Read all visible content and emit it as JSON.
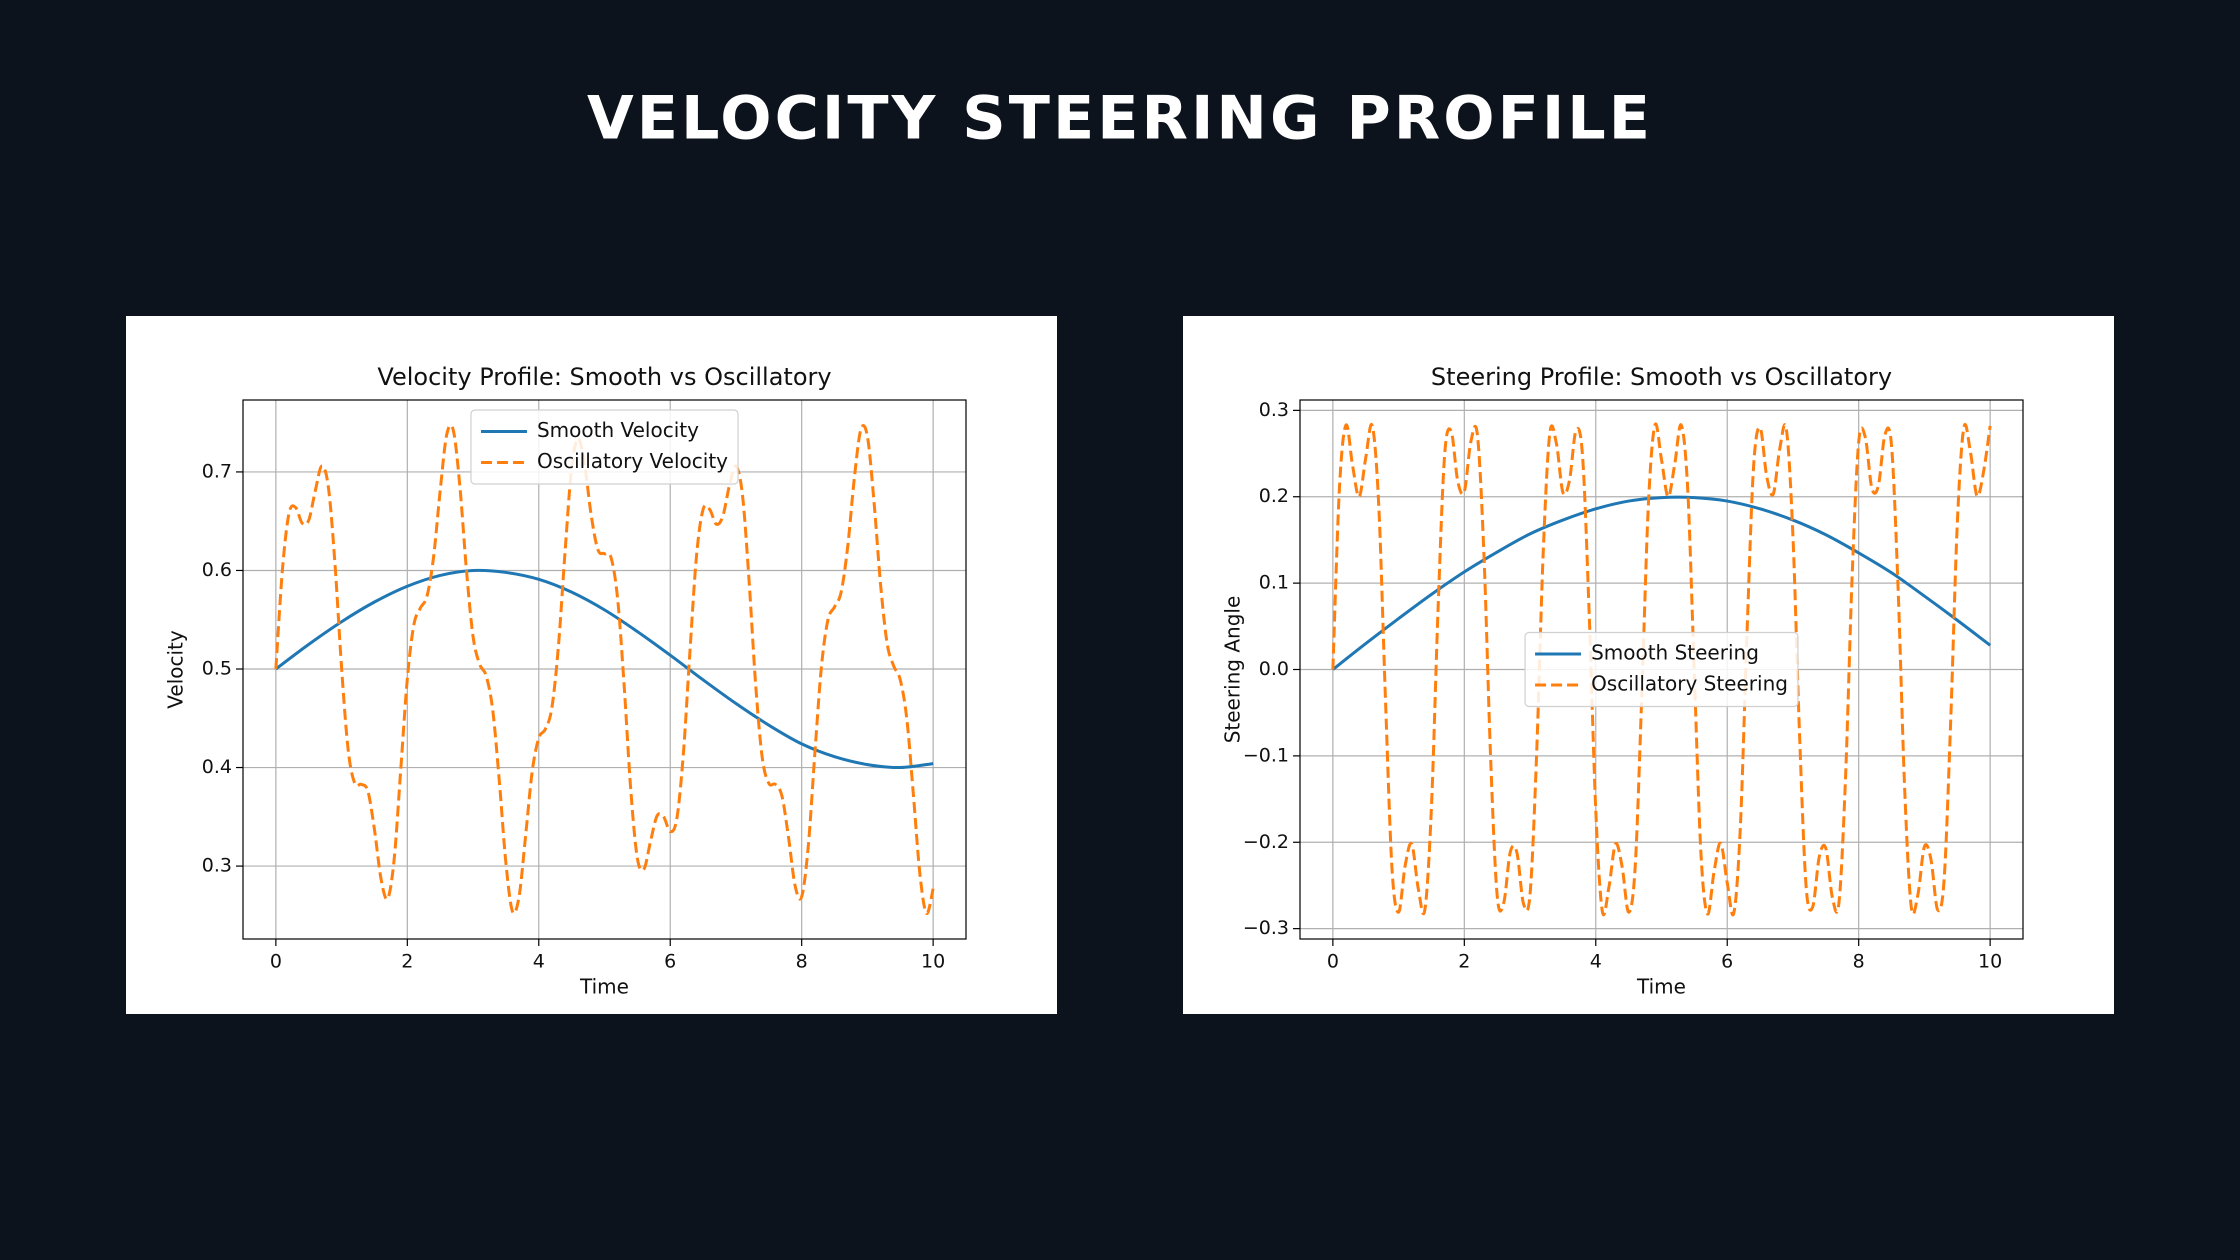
{
  "title": "VELOCITY STEERING PROFILE",
  "chart_data": [
    {
      "type": "line",
      "title": "Velocity Profile: Smooth vs Oscillatory",
      "xlabel": "Time",
      "ylabel": "Velocity",
      "xlim": [
        -0.5,
        10.5
      ],
      "ylim": [
        0.226,
        0.773
      ],
      "xticks": [
        0,
        2,
        4,
        6,
        8,
        10
      ],
      "yticks": [
        0.3,
        0.4,
        0.5,
        0.6,
        0.7
      ],
      "grid": true,
      "legend": "upper center",
      "series": [
        {
          "name": "Smooth Velocity",
          "color": "#1f77b4",
          "linestyle": "solid",
          "x": [
            0,
            0.5,
            1,
            1.5,
            2,
            2.5,
            3,
            3.5,
            4,
            4.5,
            5,
            5.5,
            6,
            6.5,
            7,
            7.5,
            8,
            8.5,
            9,
            9.5,
            10
          ],
          "values": [
            0.5,
            0.525,
            0.548,
            0.568,
            0.584,
            0.595,
            0.6,
            0.598,
            0.591,
            0.578,
            0.56,
            0.538,
            0.514,
            0.489,
            0.465,
            0.443,
            0.424,
            0.411,
            0.403,
            0.4,
            0.404
          ]
        },
        {
          "name": "Oscillatory Velocity",
          "color": "#ff7f0e",
          "linestyle": "dashed",
          "x": [
            0,
            0.1,
            0.2,
            0.3,
            0.4,
            0.5,
            0.6,
            0.7,
            0.8,
            0.9,
            1,
            1.1,
            1.2,
            1.3,
            1.4,
            1.5,
            1.6,
            1.7,
            1.8,
            1.9,
            2,
            2.1,
            2.2,
            2.3,
            2.4,
            2.5,
            2.6,
            2.7,
            2.8,
            2.9,
            3,
            3.1,
            3.2,
            3.3,
            3.4,
            3.5,
            3.6,
            3.7,
            3.8,
            3.9,
            4,
            4.1,
            4.2,
            4.3,
            4.4,
            4.5,
            4.6,
            4.7,
            4.8,
            4.9,
            5,
            5.1,
            5.2,
            5.3,
            5.4,
            5.5,
            5.6,
            5.7,
            5.8,
            5.9,
            6,
            6.1,
            6.2,
            6.3,
            6.4,
            6.5,
            6.6,
            6.7,
            6.8,
            6.9,
            7,
            7.1,
            7.2,
            7.3,
            7.4,
            7.5,
            7.6,
            7.7,
            7.8,
            7.9,
            8,
            8.1,
            8.2,
            8.3,
            8.4,
            8.5,
            8.6,
            8.7,
            8.8,
            8.9,
            9,
            9.1,
            9.2,
            9.3,
            9.4,
            9.5,
            9.6,
            9.7,
            9.8,
            9.9,
            10
          ],
          "values": [
            0.5,
            0.601,
            0.658,
            0.664,
            0.648,
            0.651,
            0.681,
            0.706,
            0.684,
            0.606,
            0.501,
            0.418,
            0.384,
            0.383,
            0.376,
            0.337,
            0.287,
            0.267,
            0.307,
            0.398,
            0.49,
            0.545,
            0.562,
            0.574,
            0.614,
            0.681,
            0.738,
            0.742,
            0.685,
            0.6,
            0.533,
            0.505,
            0.493,
            0.458,
            0.386,
            0.303,
            0.254,
            0.269,
            0.331,
            0.396,
            0.43,
            0.439,
            0.461,
            0.524,
            0.619,
            0.704,
            0.734,
            0.706,
            0.655,
            0.621,
            0.617,
            0.613,
            0.571,
            0.482,
            0.377,
            0.308,
            0.297,
            0.325,
            0.351,
            0.35,
            0.335,
            0.348,
            0.414,
            0.518,
            0.615,
            0.662,
            0.662,
            0.647,
            0.655,
            0.686,
            0.706,
            0.676,
            0.589,
            0.484,
            0.41,
            0.384,
            0.383,
            0.371,
            0.329,
            0.28,
            0.269,
            0.32,
            0.414,
            0.502,
            0.55,
            0.563,
            0.578,
            0.624,
            0.693,
            0.743,
            0.736,
            0.67,
            0.586,
            0.526,
            0.503,
            0.489,
            0.449,
            0.372,
            0.291,
            0.252,
            0.277
          ]
        }
      ]
    },
    {
      "type": "line",
      "title": "Steering Profile: Smooth vs Oscillatory",
      "xlabel": "Time",
      "ylabel": "Steering Angle",
      "xlim": [
        -0.5,
        10.5
      ],
      "ylim": [
        -0.312,
        0.312
      ],
      "xticks": [
        0,
        2,
        4,
        6,
        8,
        10
      ],
      "yticks": [
        {
          "value": -0.3,
          "label": "−0.3"
        },
        {
          "value": -0.2,
          "label": "−0.2"
        },
        {
          "value": -0.1,
          "label": "−0.1"
        },
        {
          "value": 0,
          "label": "0.0"
        },
        0.1,
        0.2,
        0.3
      ],
      "grid": true,
      "legend": "center",
      "series": [
        {
          "name": "Smooth Steering",
          "color": "#1f77b4",
          "linestyle": "solid",
          "x": [
            0,
            0.5,
            1,
            1.5,
            2,
            2.5,
            3,
            3.5,
            4,
            4.5,
            5,
            5.5,
            6,
            6.5,
            7,
            7.5,
            8,
            8.5,
            9,
            9.5,
            10
          ],
          "values": [
            0,
            0.03,
            0.059,
            0.087,
            0.113,
            0.136,
            0.157,
            0.173,
            0.186,
            0.195,
            0.199,
            0.199,
            0.195,
            0.186,
            0.173,
            0.156,
            0.135,
            0.112,
            0.085,
            0.057,
            0.028
          ]
        },
        {
          "name": "Oscillatory Steering",
          "color": "#ff7f0e",
          "linestyle": "dashed",
          "x": [
            0,
            0.1,
            0.2,
            0.3,
            0.4,
            0.5,
            0.6,
            0.7,
            0.8,
            0.9,
            1,
            1.1,
            1.2,
            1.3,
            1.4,
            1.5,
            1.6,
            1.7,
            1.8,
            1.9,
            2,
            2.1,
            2.2,
            2.3,
            2.4,
            2.5,
            2.6,
            2.7,
            2.8,
            2.9,
            3,
            3.1,
            3.2,
            3.3,
            3.4,
            3.5,
            3.6,
            3.7,
            3.8,
            3.9,
            4,
            4.1,
            4.2,
            4.3,
            4.4,
            4.5,
            4.6,
            4.7,
            4.8,
            4.9,
            5,
            5.1,
            5.2,
            5.3,
            5.4,
            5.5,
            5.6,
            5.7,
            5.8,
            5.9,
            6,
            6.1,
            6.2,
            6.3,
            6.4,
            6.5,
            6.6,
            6.7,
            6.8,
            6.9,
            7,
            7.1,
            7.2,
            7.3,
            7.4,
            7.5,
            7.6,
            7.7,
            7.8,
            7.9,
            8,
            8.1,
            8.2,
            8.3,
            8.4,
            8.5,
            8.6,
            8.7,
            8.8,
            8.9,
            9,
            9.1,
            9.2,
            9.3,
            9.4,
            9.5,
            9.6,
            9.7,
            9.8,
            9.9,
            10
          ],
          "values": [
            0,
            0.21,
            0.283,
            0.236,
            0.2,
            0.245,
            0.282,
            0.187,
            -0.034,
            -0.231,
            -0.281,
            -0.227,
            -0.202,
            -0.254,
            -0.278,
            -0.159,
            0.069,
            0.248,
            0.276,
            0.218,
            0.206,
            0.264,
            0.271,
            0.13,
            -0.102,
            -0.262,
            -0.27,
            -0.211,
            -0.212,
            -0.271,
            -0.26,
            -0.098,
            0.135,
            0.273,
            0.262,
            0.205,
            0.219,
            0.277,
            0.246,
            0.064,
            -0.163,
            -0.28,
            -0.252,
            -0.202,
            -0.228,
            -0.281,
            -0.228,
            -0.03,
            0.19,
            0.283,
            0.243,
            0.2,
            0.237,
            0.283,
            0.207,
            -0.006,
            -0.213,
            -0.283,
            -0.234,
            -0.201,
            -0.247,
            -0.282,
            -0.182,
            0.04,
            0.234,
            0.28,
            0.224,
            0.203,
            0.256,
            0.278,
            0.154,
            -0.075,
            -0.251,
            -0.275,
            -0.217,
            -0.207,
            -0.264,
            -0.27,
            -0.125,
            0.107,
            0.263,
            0.269,
            0.21,
            0.213,
            0.272,
            0.259,
            0.093,
            -0.139,
            -0.275,
            -0.261,
            -0.205,
            -0.22,
            -0.278,
            -0.243,
            -0.059,
            0.168,
            0.28,
            0.252,
            0.201,
            0.229,
            0.282
          ]
        }
      ]
    }
  ]
}
